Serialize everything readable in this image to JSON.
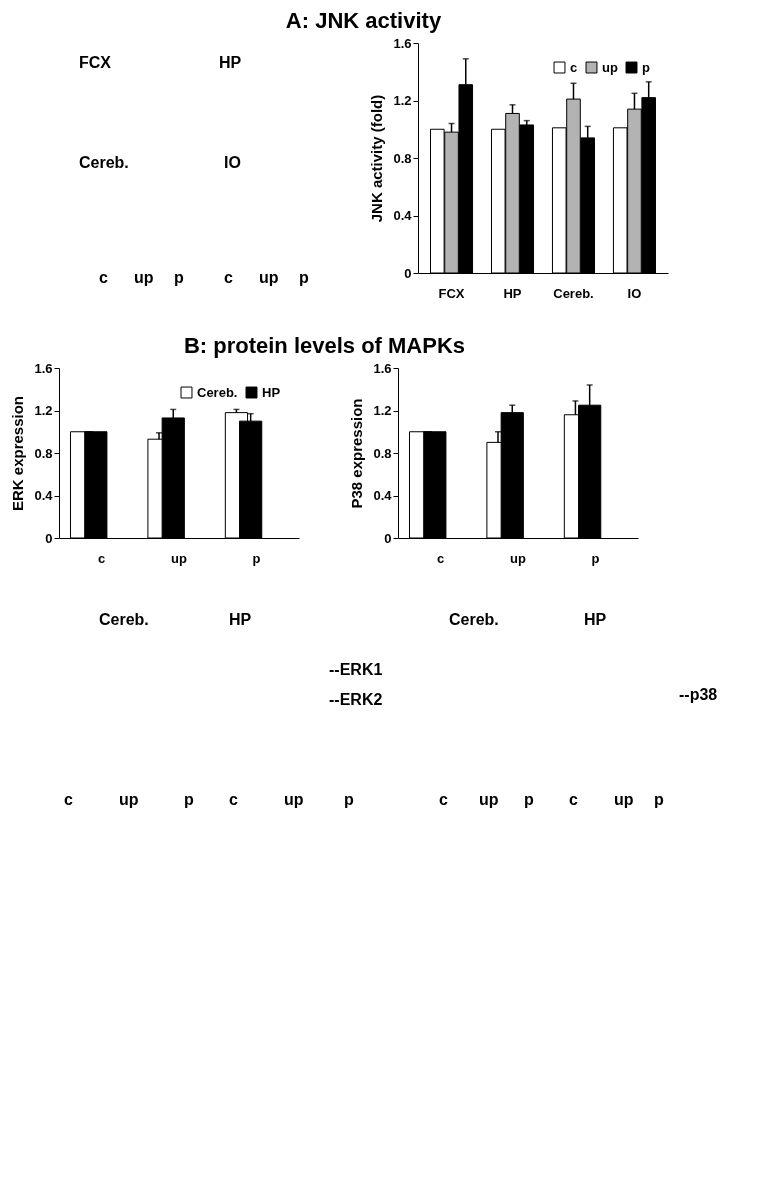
{
  "chart_data": [
    {
      "type": "bar",
      "title": "A: JNK activity",
      "ylabel": "JNK activity (fold)",
      "categories": [
        "FCX",
        "HP",
        "Cereb.",
        "IO"
      ],
      "ylim": [
        0,
        1.6
      ],
      "yticks": [
        0,
        0.4,
        0.8,
        1.2,
        1.6
      ],
      "legend": "top right",
      "series": [
        {
          "name": "c",
          "color": "#ffffff",
          "values": [
            1.0,
            1.0,
            1.01,
            1.01
          ]
        },
        {
          "name": "up",
          "color": "#b3b3b3",
          "values": [
            0.98,
            1.11,
            1.21,
            1.14
          ],
          "errors": [
            [
              0.98,
              1.04
            ],
            [
              1.11,
              1.17
            ],
            [
              1.21,
              1.32
            ],
            [
              1.14,
              1.25
            ]
          ]
        },
        {
          "name": "p",
          "color": "#000000",
          "values": [
            1.31,
            1.03,
            0.94,
            1.22
          ],
          "errors": [
            [
              1.31,
              1.49
            ],
            [
              1.03,
              1.06
            ],
            [
              0.94,
              1.02
            ],
            [
              1.22,
              1.33
            ]
          ]
        }
      ],
      "annotations": [
        "FCX",
        "HP",
        "Cereb.",
        "IO",
        "c",
        "up",
        "p",
        "c",
        "up",
        "p"
      ]
    },
    {
      "type": "bar",
      "title": "B:  protein levels of MAPKs",
      "ylabel": "ERK expression",
      "categories": [
        "c",
        "up",
        "p"
      ],
      "ylim": [
        0,
        1.6
      ],
      "yticks": [
        0,
        0.4,
        0.8,
        1.2,
        1.6
      ],
      "legend": "top right",
      "series": [
        {
          "name": "Cereb.",
          "color": "#ffffff",
          "values": [
            1.0,
            0.93,
            1.18
          ],
          "errors": [
            null,
            [
              0.93,
              0.99
            ],
            [
              1.18,
              1.21
            ]
          ]
        },
        {
          "name": "HP",
          "color": "#000000",
          "values": [
            1.0,
            1.13,
            1.1
          ],
          "errors": [
            null,
            [
              1.13,
              1.21
            ],
            [
              1.1,
              1.17
            ]
          ]
        }
      ],
      "annotations": [
        "Cereb.",
        "HP",
        "--ERK1",
        "--ERK2",
        "c",
        "up",
        "p",
        "c",
        "up",
        "p"
      ]
    },
    {
      "type": "bar",
      "ylabel": "P38 expression",
      "categories": [
        "c",
        "up",
        "p"
      ],
      "ylim": [
        0,
        1.6
      ],
      "yticks": [
        0,
        0.4,
        0.8,
        1.2,
        1.6
      ],
      "series": [
        {
          "color": "#ffffff",
          "values": [
            1.0,
            0.9,
            1.16
          ],
          "errors": [
            null,
            [
              0.9,
              1.0
            ],
            [
              1.16,
              1.29
            ]
          ]
        },
        {
          "color": "#000000",
          "values": [
            1.0,
            1.18,
            1.25
          ],
          "errors": [
            null,
            [
              1.18,
              1.25
            ],
            [
              1.25,
              1.44
            ]
          ]
        }
      ],
      "annotations": [
        "Cereb.",
        "HP",
        "--p38",
        "c",
        "up",
        "p",
        "c",
        "up",
        "p"
      ]
    }
  ]
}
